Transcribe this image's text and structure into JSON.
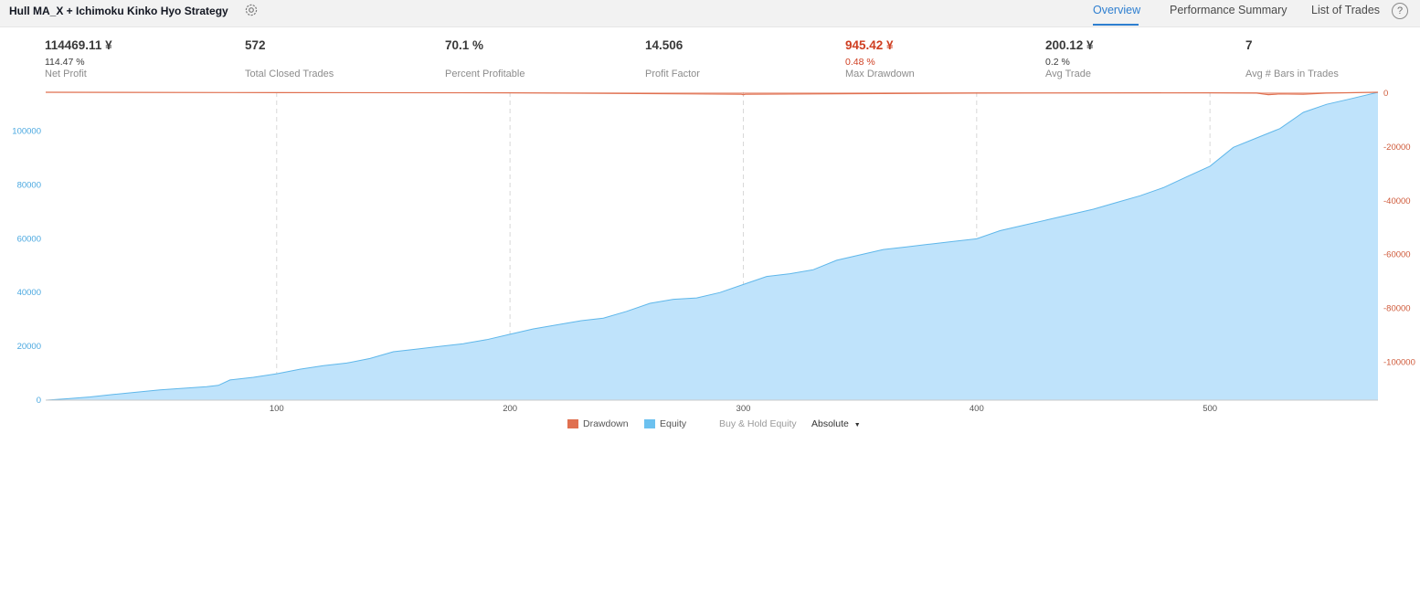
{
  "header": {
    "strategy_name": "Hull MA_X + Ichimoku Kinko Hyo Strategy",
    "tabs": [
      {
        "label": "Overview",
        "active": true
      },
      {
        "label": "Performance Summary",
        "active": false
      },
      {
        "label": "List of Trades",
        "active": false
      }
    ],
    "help_glyph": "?"
  },
  "metrics": [
    {
      "value": "114469.11 ¥",
      "sub": "114.47 %",
      "label": "Net Profit"
    },
    {
      "value": "572",
      "sub": "",
      "label": "Total Closed Trades"
    },
    {
      "value": "70.1 %",
      "sub": "",
      "label": "Percent Profitable"
    },
    {
      "value": "14.506",
      "sub": "",
      "label": "Profit Factor"
    },
    {
      "value": "945.42 ¥",
      "sub": "0.48 %",
      "label": "Max Drawdown",
      "highlight": "red"
    },
    {
      "value": "200.12 ¥",
      "sub": "0.2 %",
      "label": "Avg Trade"
    },
    {
      "value": "7",
      "sub": "",
      "label": "Avg # Bars in Trades"
    }
  ],
  "legend": {
    "drawdown": "Drawdown",
    "equity": "Equity",
    "buy_hold": "Buy & Hold Equity",
    "mode": "Absolute"
  },
  "colors": {
    "equity_fill": "#bfe3fb",
    "equity_line": "#5fb7ea",
    "drawdown": "#e07050",
    "left_axis": "#4aa8e0",
    "right_axis": "#cf5a3a",
    "accent": "#2e7fd0"
  },
  "chart_data": {
    "type": "area",
    "x_ticks": [
      100,
      200,
      300,
      400,
      500
    ],
    "x_range": [
      1,
      572
    ],
    "left_axis": {
      "ticks": [
        0,
        20000,
        40000,
        60000,
        80000,
        100000
      ],
      "range": [
        0,
        114469.11
      ]
    },
    "right_axis": {
      "ticks": [
        0,
        -20000,
        -40000,
        -60000,
        -80000,
        -100000
      ],
      "range": [
        -114469.11,
        0
      ]
    },
    "series": [
      {
        "name": "Equity",
        "x": [
          1,
          10,
          20,
          30,
          40,
          50,
          60,
          70,
          75,
          80,
          90,
          100,
          110,
          120,
          130,
          140,
          150,
          160,
          170,
          180,
          190,
          200,
          210,
          220,
          230,
          240,
          250,
          260,
          270,
          280,
          290,
          300,
          310,
          320,
          330,
          340,
          350,
          360,
          370,
          380,
          390,
          400,
          410,
          420,
          430,
          440,
          450,
          460,
          470,
          480,
          490,
          500,
          510,
          520,
          530,
          540,
          550,
          560,
          572
        ],
        "values": [
          0,
          500,
          1200,
          2100,
          3000,
          3800,
          4400,
          5000,
          5500,
          7500,
          8500,
          9800,
          11500,
          12800,
          13800,
          15500,
          18000,
          19000,
          20000,
          21000,
          22500,
          24500,
          26500,
          28000,
          29500,
          30500,
          33000,
          36000,
          37500,
          38000,
          40000,
          43000,
          46000,
          47000,
          48500,
          52000,
          54000,
          56000,
          57000,
          58000,
          59000,
          60000,
          63000,
          65000,
          67000,
          69000,
          71000,
          73500,
          76000,
          79000,
          83000,
          87000,
          94000,
          97500,
          101000,
          107000,
          110000,
          112000,
          114469.11
        ]
      },
      {
        "name": "Drawdown",
        "x": [
          1,
          100,
          200,
          299,
          300,
          301,
          400,
          500,
          520,
          525,
          530,
          540,
          545,
          550,
          572
        ],
        "values": [
          0,
          -150,
          -200,
          -700,
          -945.42,
          -700,
          -300,
          -200,
          -300,
          -900,
          -600,
          -700,
          -500,
          -300,
          0
        ]
      }
    ]
  }
}
